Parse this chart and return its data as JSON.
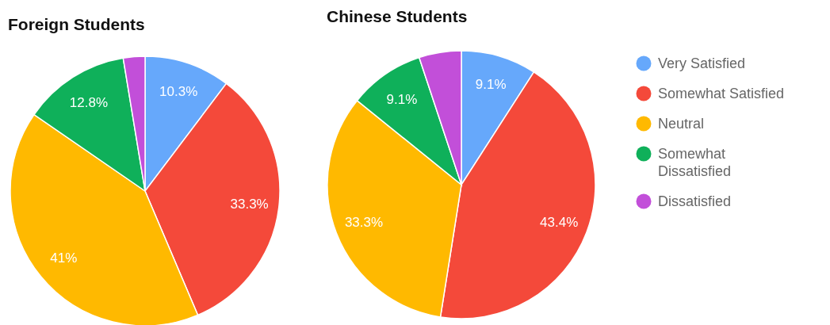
{
  "chart_data": [
    {
      "type": "pie",
      "title": "Foreign Students",
      "categories": [
        "Very Satisfied",
        "Somewhat Satisfied",
        "Neutral",
        "Somewhat Dissatisfied",
        "Dissatisfied"
      ],
      "values": [
        10.3,
        33.3,
        41,
        12.8,
        2.6
      ],
      "value_labels": [
        "10.3%",
        "33.3%",
        "41%",
        "12.8%",
        null
      ],
      "colors": [
        "#66a8fb",
        "#f4493a",
        "#ffb900",
        "#0fb05a",
        "#c24fd9"
      ],
      "legend": "right"
    },
    {
      "type": "pie",
      "title": "Chinese Students",
      "categories": [
        null,
        null,
        null,
        null,
        null
      ],
      "values": [
        9.1,
        43.4,
        33.3,
        9.1,
        5.1
      ],
      "value_labels": [
        "9.1%",
        "43.4%",
        "33.3%",
        "9.1%",
        null
      ],
      "colors": [
        "#66a8fb",
        "#f4493a",
        "#ffb900",
        "#0fb05a",
        "#c24fd9"
      ],
      "legend": false
    }
  ]
}
